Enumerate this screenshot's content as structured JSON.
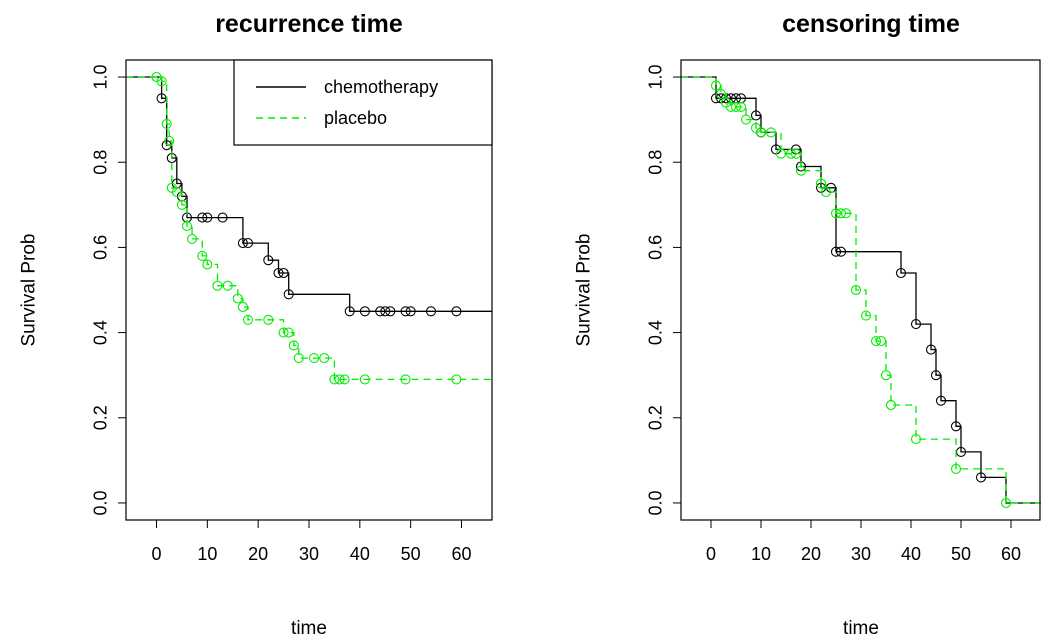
{
  "chart_data": [
    {
      "type": "line",
      "step": "km-survival",
      "title": "recurrence time",
      "xlabel": "time",
      "ylabel": "Survival Prob",
      "xlim": [
        -6,
        66
      ],
      "ylim": [
        -0.04,
        1.04
      ],
      "xticks": [
        "0",
        "10",
        "20",
        "30",
        "40",
        "50",
        "60"
      ],
      "yticks": [
        "0.0",
        "0.2",
        "0.4",
        "0.6",
        "0.8",
        "1.0"
      ],
      "legend": {
        "position": "top-right",
        "entries": [
          {
            "name": "chemotherapy",
            "color": "#000000",
            "style": "solid"
          },
          {
            "name": "placebo",
            "color": "#00ee00",
            "style": "dashed"
          }
        ]
      },
      "series": [
        {
          "name": "chemotherapy",
          "color": "#000000",
          "style": "solid",
          "steps": [
            [
              -6,
              1.0
            ],
            [
              1,
              0.95
            ],
            [
              2,
              0.84
            ],
            [
              3,
              0.81
            ],
            [
              4,
              0.75
            ],
            [
              5,
              0.72
            ],
            [
              6,
              0.67
            ],
            [
              17,
              0.61
            ],
            [
              22,
              0.57
            ],
            [
              24,
              0.54
            ],
            [
              26,
              0.49
            ],
            [
              38,
              0.45
            ],
            [
              66,
              0.45
            ]
          ],
          "censor_marks": [
            [
              1,
              0.95
            ],
            [
              2,
              0.84
            ],
            [
              3,
              0.81
            ],
            [
              4,
              0.75
            ],
            [
              5,
              0.72
            ],
            [
              6,
              0.67
            ],
            [
              9,
              0.67
            ],
            [
              10,
              0.67
            ],
            [
              13,
              0.67
            ],
            [
              17,
              0.61
            ],
            [
              18,
              0.61
            ],
            [
              22,
              0.57
            ],
            [
              24,
              0.54
            ],
            [
              25,
              0.54
            ],
            [
              26,
              0.49
            ],
            [
              38,
              0.45
            ],
            [
              41,
              0.45
            ],
            [
              44,
              0.45
            ],
            [
              45,
              0.45
            ],
            [
              46,
              0.45
            ],
            [
              49,
              0.45
            ],
            [
              50,
              0.45
            ],
            [
              54,
              0.45
            ],
            [
              59,
              0.45
            ]
          ]
        },
        {
          "name": "placebo",
          "color": "#00ee00",
          "style": "dashed",
          "steps": [
            [
              -6,
              1.0
            ],
            [
              0,
              1.0
            ],
            [
              1,
              0.99
            ],
            [
              2,
              0.89
            ],
            [
              2.5,
              0.85
            ],
            [
              3,
              0.74
            ],
            [
              4,
              0.73
            ],
            [
              5,
              0.7
            ],
            [
              6,
              0.65
            ],
            [
              7,
              0.62
            ],
            [
              9,
              0.58
            ],
            [
              10,
              0.56
            ],
            [
              12,
              0.51
            ],
            [
              14,
              0.51
            ],
            [
              16,
              0.48
            ],
            [
              17,
              0.46
            ],
            [
              18,
              0.43
            ],
            [
              23,
              0.43
            ],
            [
              25,
              0.4
            ],
            [
              27,
              0.37
            ],
            [
              28,
              0.34
            ],
            [
              35,
              0.29
            ],
            [
              66,
              0.29
            ]
          ],
          "censor_marks": [
            [
              0,
              1.0
            ],
            [
              1,
              0.99
            ],
            [
              2,
              0.89
            ],
            [
              2.5,
              0.85
            ],
            [
              3,
              0.74
            ],
            [
              4,
              0.73
            ],
            [
              5,
              0.7
            ],
            [
              6,
              0.65
            ],
            [
              7,
              0.62
            ],
            [
              9,
              0.58
            ],
            [
              10,
              0.56
            ],
            [
              12,
              0.51
            ],
            [
              14,
              0.51
            ],
            [
              16,
              0.48
            ],
            [
              17,
              0.46
            ],
            [
              18,
              0.43
            ],
            [
              22,
              0.43
            ],
            [
              25,
              0.4
            ],
            [
              26,
              0.4
            ],
            [
              27,
              0.37
            ],
            [
              28,
              0.34
            ],
            [
              31,
              0.34
            ],
            [
              33,
              0.34
            ],
            [
              35,
              0.29
            ],
            [
              36,
              0.29
            ],
            [
              37,
              0.29
            ],
            [
              41,
              0.29
            ],
            [
              49,
              0.29
            ],
            [
              59,
              0.29
            ]
          ]
        }
      ]
    },
    {
      "type": "line",
      "step": "km-survival",
      "title": "censoring time",
      "xlabel": "time",
      "ylabel": "Survival Prob",
      "xlim": [
        -6,
        66
      ],
      "ylim": [
        -0.04,
        1.04
      ],
      "xticks": [
        "0",
        "10",
        "20",
        "30",
        "40",
        "50",
        "60"
      ],
      "yticks": [
        "0.0",
        "0.2",
        "0.4",
        "0.6",
        "0.8",
        "1.0"
      ],
      "series": [
        {
          "name": "chemotherapy",
          "color": "#000000",
          "style": "solid",
          "steps": [
            [
              -6,
              1.0
            ],
            [
              1,
              0.95
            ],
            [
              6,
              0.95
            ],
            [
              9,
              0.91
            ],
            [
              10,
              0.87
            ],
            [
              13,
              0.83
            ],
            [
              17,
              0.83
            ],
            [
              18,
              0.79
            ],
            [
              22,
              0.74
            ],
            [
              24,
              0.74
            ],
            [
              25,
              0.59
            ],
            [
              38,
              0.54
            ],
            [
              41,
              0.42
            ],
            [
              44,
              0.36
            ],
            [
              45,
              0.3
            ],
            [
              46,
              0.24
            ],
            [
              49,
              0.18
            ],
            [
              50,
              0.12
            ],
            [
              54,
              0.06
            ],
            [
              59,
              0.0
            ],
            [
              66,
              0.0
            ]
          ],
          "censor_marks": [
            [
              1,
              0.95
            ],
            [
              2,
              0.95
            ],
            [
              3,
              0.95
            ],
            [
              4,
              0.95
            ],
            [
              5,
              0.95
            ],
            [
              6,
              0.95
            ],
            [
              9,
              0.91
            ],
            [
              10,
              0.87
            ],
            [
              13,
              0.83
            ],
            [
              17,
              0.83
            ],
            [
              18,
              0.79
            ],
            [
              22,
              0.74
            ],
            [
              24,
              0.74
            ],
            [
              25,
              0.59
            ],
            [
              26,
              0.59
            ],
            [
              38,
              0.54
            ],
            [
              41,
              0.42
            ],
            [
              44,
              0.36
            ],
            [
              45,
              0.3
            ],
            [
              46,
              0.24
            ],
            [
              49,
              0.18
            ],
            [
              50,
              0.12
            ],
            [
              54,
              0.06
            ]
          ]
        },
        {
          "name": "placebo",
          "color": "#00ee00",
          "style": "dashed",
          "steps": [
            [
              -6,
              1.0
            ],
            [
              0,
              1.0
            ],
            [
              1,
              0.98
            ],
            [
              2,
              0.96
            ],
            [
              3,
              0.94
            ],
            [
              4,
              0.93
            ],
            [
              7,
              0.9
            ],
            [
              9,
              0.88
            ],
            [
              10,
              0.87
            ],
            [
              12,
              0.87
            ],
            [
              14,
              0.82
            ],
            [
              18,
              0.78
            ],
            [
              22,
              0.75
            ],
            [
              23,
              0.73
            ],
            [
              25,
              0.68
            ],
            [
              27,
              0.68
            ],
            [
              29,
              0.5
            ],
            [
              31,
              0.44
            ],
            [
              33,
              0.38
            ],
            [
              35,
              0.3
            ],
            [
              36,
              0.23
            ],
            [
              41,
              0.15
            ],
            [
              49,
              0.08
            ],
            [
              59,
              0.0
            ],
            [
              66,
              0.0
            ]
          ],
          "censor_marks": [
            [
              1,
              0.98
            ],
            [
              2,
              0.96
            ],
            [
              3,
              0.94
            ],
            [
              4,
              0.93
            ],
            [
              5,
              0.93
            ],
            [
              6,
              0.93
            ],
            [
              7,
              0.9
            ],
            [
              9,
              0.88
            ],
            [
              10,
              0.87
            ],
            [
              12,
              0.87
            ],
            [
              14,
              0.82
            ],
            [
              16,
              0.82
            ],
            [
              17,
              0.82
            ],
            [
              18,
              0.78
            ],
            [
              22,
              0.75
            ],
            [
              23,
              0.73
            ],
            [
              25,
              0.68
            ],
            [
              26,
              0.68
            ],
            [
              27,
              0.68
            ],
            [
              29,
              0.5
            ],
            [
              31,
              0.44
            ],
            [
              33,
              0.38
            ],
            [
              34,
              0.38
            ],
            [
              35,
              0.3
            ],
            [
              36,
              0.23
            ],
            [
              41,
              0.15
            ],
            [
              49,
              0.08
            ],
            [
              59,
              0.0
            ]
          ]
        }
      ]
    }
  ]
}
